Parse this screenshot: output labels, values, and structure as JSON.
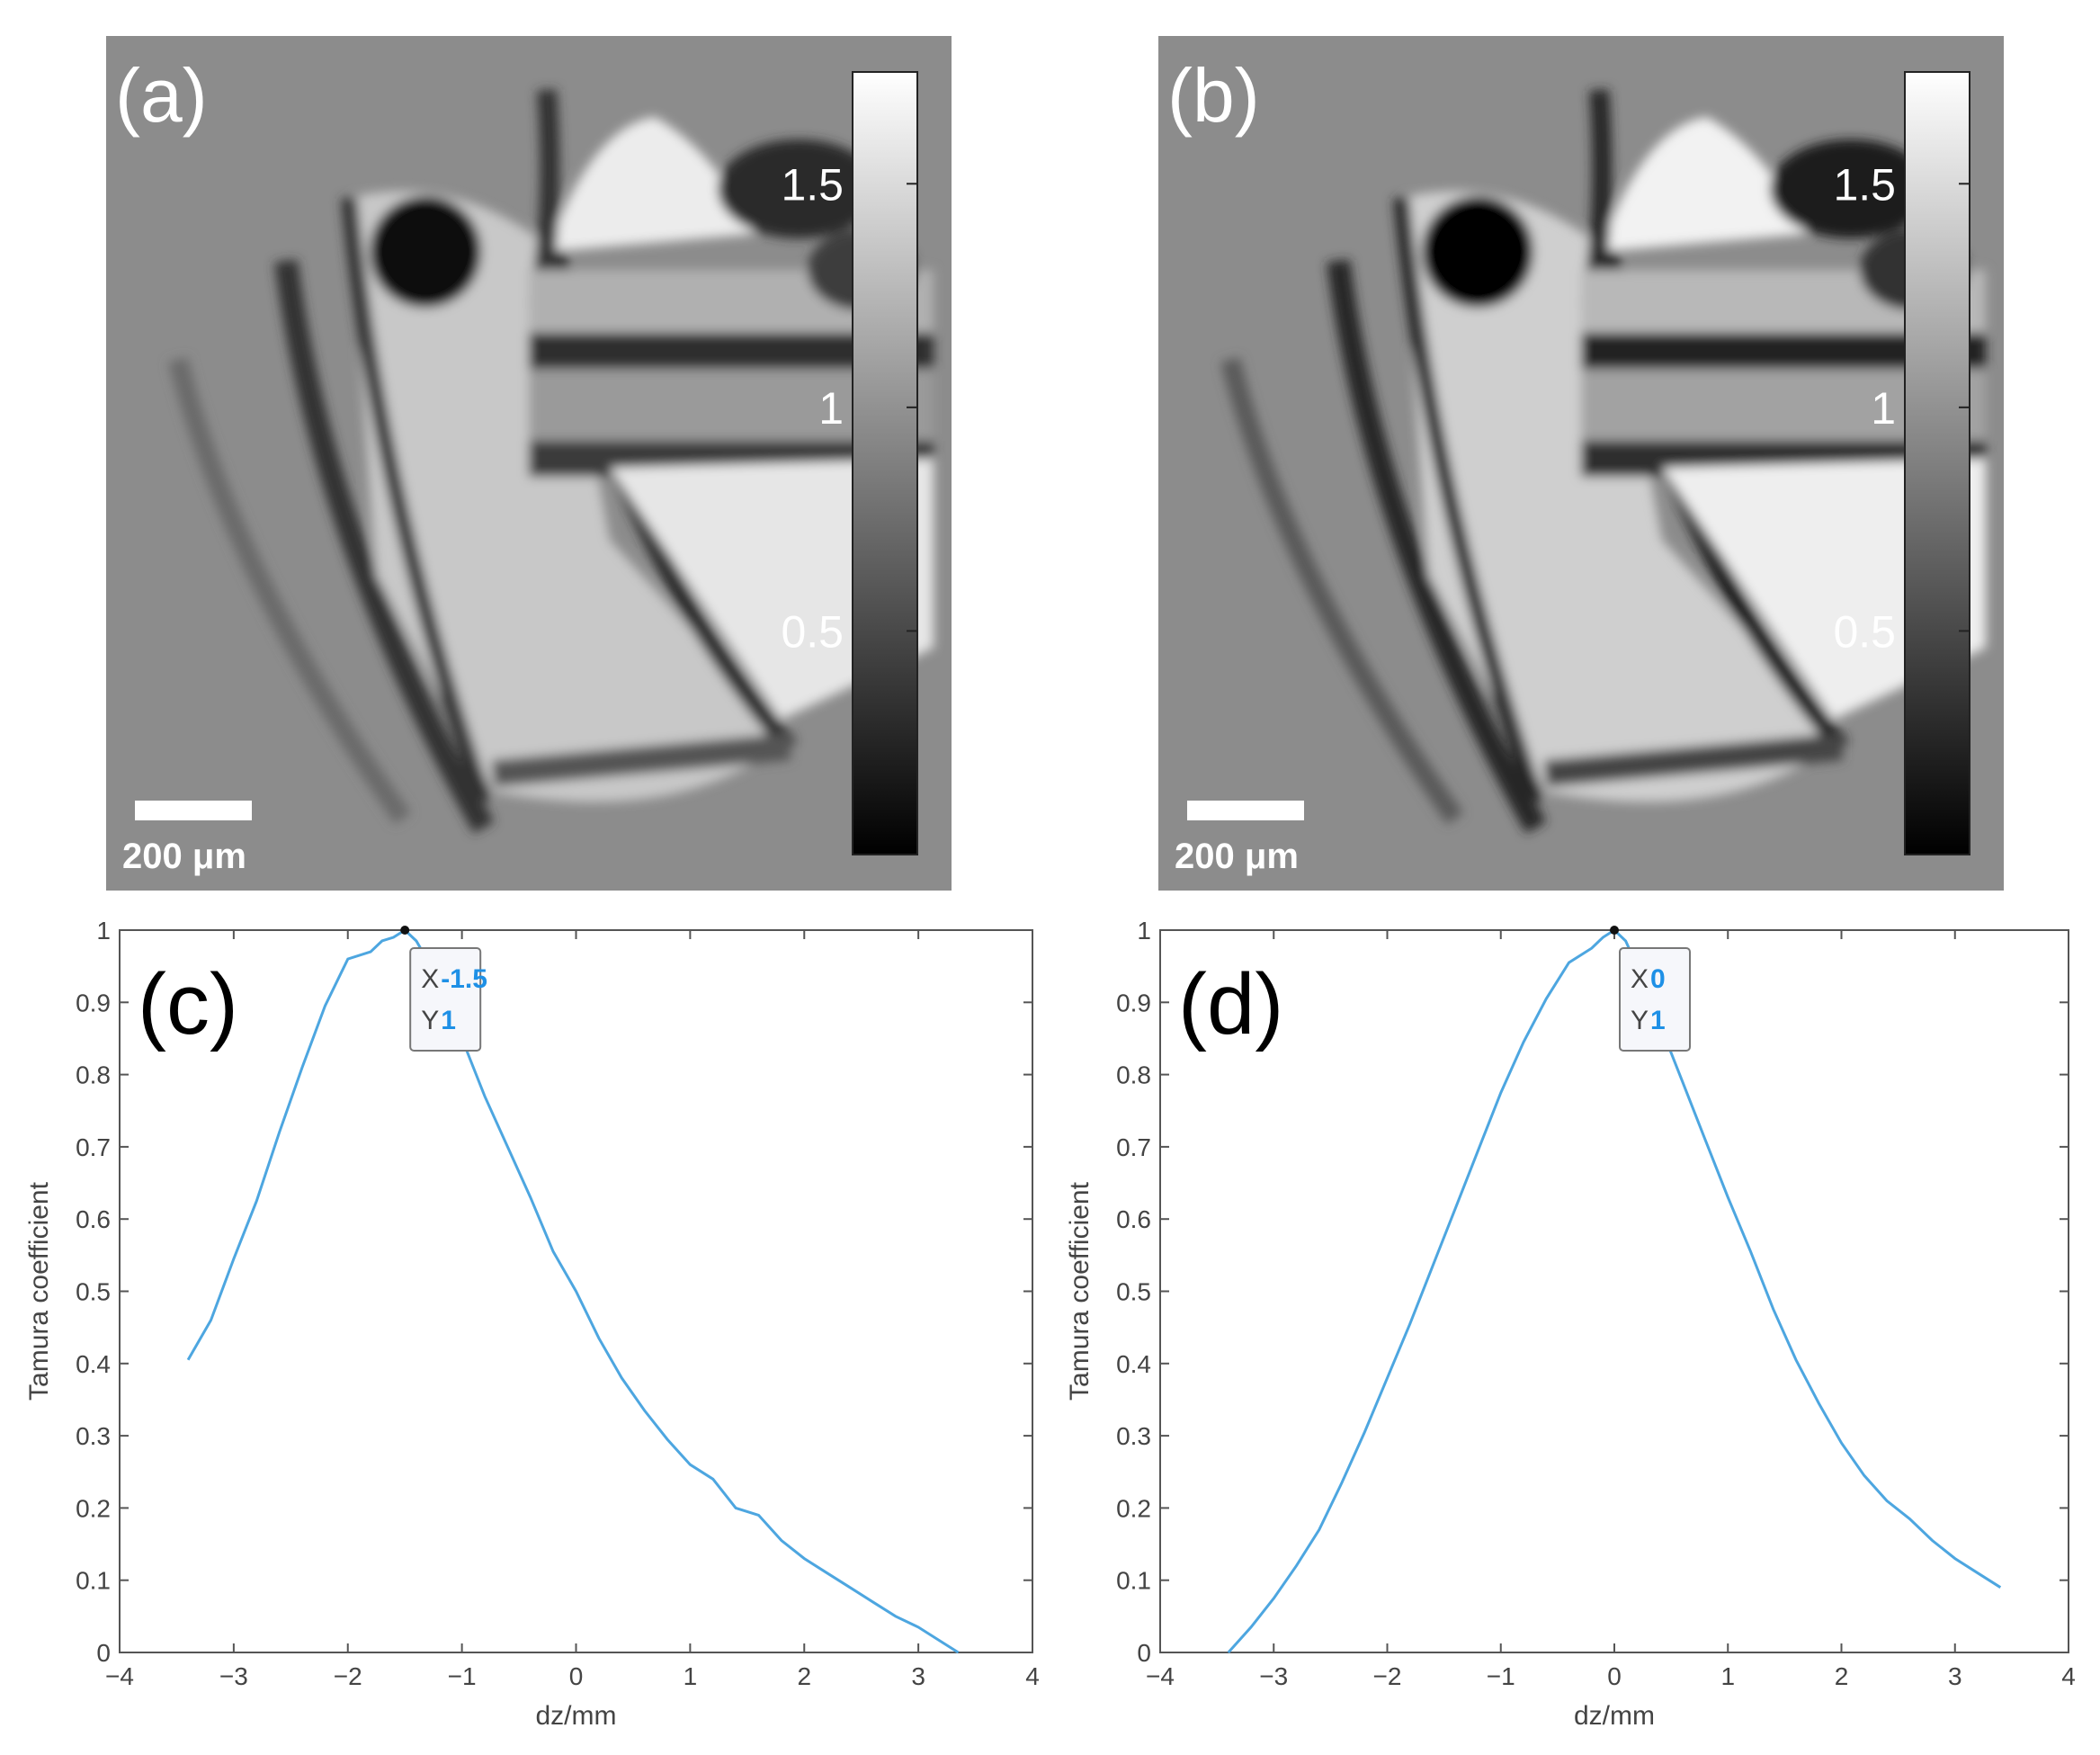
{
  "panels": [
    {
      "label": "(a)",
      "scale_bar": "200 μm",
      "colorbar": {
        "range": [
          0,
          1.75
        ],
        "ticks": [
          0.5,
          1,
          1.5
        ],
        "tick_labels": [
          "0.5",
          "1",
          "1.5"
        ]
      }
    },
    {
      "label": "(b)",
      "scale_bar": "200 μm",
      "colorbar": {
        "range": [
          0,
          1.75
        ],
        "ticks": [
          0.5,
          1,
          1.5
        ],
        "tick_labels": [
          "0.5",
          "1",
          "1.5"
        ]
      }
    }
  ],
  "chart_data": [
    {
      "type": "line",
      "label": "(c)",
      "xlabel": "dz/mm",
      "ylabel": "Tamura coefficient",
      "xlim": [
        -4,
        4
      ],
      "ylim": [
        0,
        1
      ],
      "xticks": [
        -4,
        -3,
        -2,
        -1,
        0,
        1,
        2,
        3,
        4
      ],
      "yticks": [
        0,
        0.1,
        0.2,
        0.3,
        0.4,
        0.5,
        0.6,
        0.7,
        0.8,
        0.9,
        1
      ],
      "line_color": "#4da6e0",
      "x": [
        -3.4,
        -3.2,
        -3.0,
        -2.8,
        -2.6,
        -2.4,
        -2.2,
        -2.0,
        -1.8,
        -1.7,
        -1.6,
        -1.5,
        -1.4,
        -1.2,
        -1.0,
        -0.8,
        -0.6,
        -0.4,
        -0.2,
        0.0,
        0.2,
        0.4,
        0.6,
        0.8,
        1.0,
        1.2,
        1.4,
        1.6,
        1.8,
        2.0,
        2.2,
        2.4,
        2.6,
        2.8,
        3.0,
        3.2,
        3.35
      ],
      "y": [
        0.405,
        0.46,
        0.545,
        0.625,
        0.72,
        0.81,
        0.895,
        0.96,
        0.97,
        0.985,
        0.99,
        1.0,
        0.985,
        0.93,
        0.85,
        0.77,
        0.7,
        0.63,
        0.555,
        0.5,
        0.435,
        0.38,
        0.335,
        0.295,
        0.26,
        0.24,
        0.2,
        0.19,
        0.155,
        0.13,
        0.11,
        0.09,
        0.07,
        0.05,
        0.035,
        0.015,
        0.0
      ],
      "datatip": {
        "x": -1.5,
        "y": 1,
        "x_label": "X",
        "y_label": "Y",
        "x_text": "-1.5",
        "y_text": "1"
      }
    },
    {
      "type": "line",
      "label": "(d)",
      "xlabel": "dz/mm",
      "ylabel": "Tamura coefficient",
      "xlim": [
        -4,
        4
      ],
      "ylim": [
        0,
        1
      ],
      "xticks": [
        -4,
        -3,
        -2,
        -1,
        0,
        1,
        2,
        3,
        4
      ],
      "yticks": [
        0,
        0.1,
        0.2,
        0.3,
        0.4,
        0.5,
        0.6,
        0.7,
        0.8,
        0.9,
        1
      ],
      "line_color": "#4da6e0",
      "x": [
        -3.4,
        -3.2,
        -3.0,
        -2.8,
        -2.6,
        -2.4,
        -2.2,
        -2.0,
        -1.8,
        -1.6,
        -1.4,
        -1.2,
        -1.0,
        -0.8,
        -0.6,
        -0.4,
        -0.2,
        -0.1,
        0.0,
        0.1,
        0.2,
        0.4,
        0.6,
        0.8,
        1.0,
        1.2,
        1.4,
        1.6,
        1.8,
        2.0,
        2.2,
        2.4,
        2.6,
        2.8,
        3.0,
        3.2,
        3.4
      ],
      "y": [
        0.0,
        0.035,
        0.075,
        0.12,
        0.17,
        0.235,
        0.305,
        0.38,
        0.455,
        0.535,
        0.615,
        0.695,
        0.775,
        0.845,
        0.905,
        0.955,
        0.975,
        0.99,
        1.0,
        0.985,
        0.95,
        0.87,
        0.79,
        0.71,
        0.63,
        0.555,
        0.475,
        0.405,
        0.345,
        0.29,
        0.245,
        0.21,
        0.185,
        0.155,
        0.13,
        0.11,
        0.09
      ],
      "datatip": {
        "x": 0,
        "y": 1,
        "x_label": "X",
        "y_label": "Y",
        "x_text": "0",
        "y_text": "1"
      }
    }
  ]
}
